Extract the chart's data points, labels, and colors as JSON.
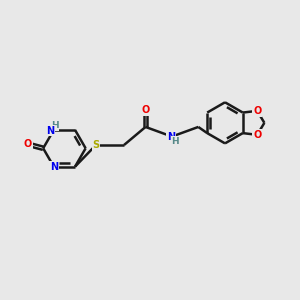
{
  "bg_color": "#e8e8e8",
  "bond_color": "#1a1a1a",
  "N_color": "#0000EE",
  "O_color": "#EE0000",
  "S_color": "#AAAA00",
  "NH_color": "#558888",
  "linewidth": 1.8,
  "figsize": [
    3.0,
    3.0
  ],
  "dpi": 100,
  "xlim": [
    -3.8,
    4.8
  ],
  "ylim": [
    -2.5,
    2.5
  ]
}
